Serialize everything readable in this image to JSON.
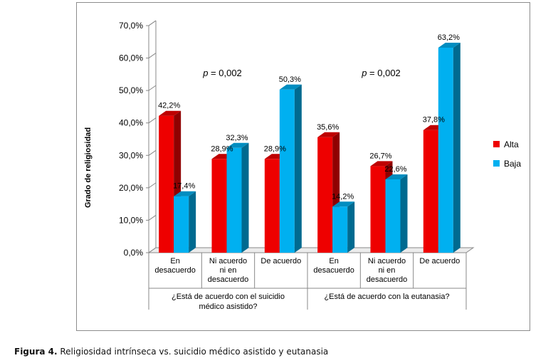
{
  "caption": {
    "number": "Figura 4.",
    "text": "Religiosidad intrínseca vs. suicidio médico asistido y eutanasia"
  },
  "chart_data": {
    "type": "bar",
    "ylabel": "Grado de religiosidad",
    "ylim": [
      0,
      70
    ],
    "ytick_step": 10,
    "ytick_labels": [
      "0,0%",
      "10,0%",
      "20,0%",
      "30,0%",
      "40,0%",
      "50,0%",
      "60,0%",
      "70,0%"
    ],
    "categories": [
      [
        "En",
        "desacuerdo"
      ],
      [
        "Ni acuerdo",
        "ni en",
        "desacuerdo"
      ],
      [
        "De acuerdo"
      ],
      [
        "En",
        "desacuerdo"
      ],
      [
        "Ni acuerdo",
        "ni en",
        "desacuerdo"
      ],
      [
        "De acuerdo"
      ]
    ],
    "groups": [
      {
        "label": [
          "¿Está de acuerdo con el suicidio",
          "médico asistido?"
        ],
        "annotation": "p = 0,002"
      },
      {
        "label": [
          "¿Está de acuerdo con la eutanasia?"
        ],
        "annotation": "p = 0,002"
      }
    ],
    "series": [
      {
        "name": "Alta",
        "color": "#ee0000",
        "values": [
          42.2,
          28.9,
          28.9,
          35.6,
          26.7,
          37.8
        ],
        "data_labels": [
          "42,2%",
          "28,9%",
          "28,9%",
          "35,6%",
          "26,7%",
          "37,8%"
        ]
      },
      {
        "name": "Baja",
        "color": "#00b0f0",
        "values": [
          17.4,
          32.3,
          50.3,
          14.2,
          22.6,
          63.2
        ],
        "data_labels": [
          "17,4%",
          "32,3%",
          "50,3%",
          "14,2%",
          "22,6%",
          "63,2%"
        ]
      }
    ],
    "legend_position": "right",
    "grid": false,
    "style": "3d-bars"
  }
}
